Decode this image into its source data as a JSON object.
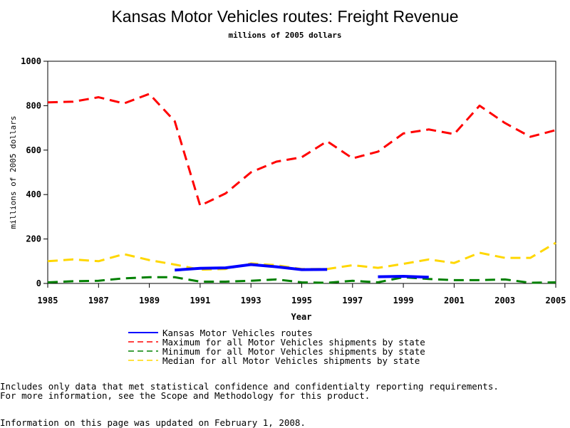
{
  "chart_data": {
    "type": "line",
    "title": "Kansas Motor Vehicles routes: Freight Revenue",
    "subtitle": "millions of 2005 dollars",
    "xlabel": "Year",
    "ylabel": "millions of 2005 dollars",
    "xlim": [
      1985,
      2005
    ],
    "ylim": [
      0,
      1000
    ],
    "x_ticks": [
      "1985",
      "1987",
      "1989",
      "1991",
      "1993",
      "1995",
      "1997",
      "1999",
      "2001",
      "2003",
      "2005"
    ],
    "y_ticks": [
      "0",
      "200",
      "400",
      "600",
      "800",
      "1000"
    ],
    "grid": false,
    "legend_position": "bottom",
    "series": [
      {
        "name": "Kansas Motor Vehicles routes",
        "color": "#0000ff",
        "style": "solid",
        "segments": [
          [
            [
              1990,
              60
            ],
            [
              1991,
              68
            ],
            [
              1992,
              70
            ],
            [
              1993,
              85
            ],
            [
              1994,
              75
            ],
            [
              1995,
              62
            ],
            [
              1996,
              63
            ]
          ],
          [
            [
              1998,
              30
            ],
            [
              1999,
              32
            ],
            [
              2000,
              28
            ]
          ]
        ]
      },
      {
        "name": "Maximum for all Motor Vehicles shipments by state",
        "color": "#ff0000",
        "style": "dashed",
        "segments": [
          [
            [
              1985,
              815
            ],
            [
              1986,
              818
            ],
            [
              1987,
              838
            ],
            [
              1988,
              810
            ],
            [
              1989,
              853
            ],
            [
              1990,
              730
            ],
            [
              1991,
              350
            ],
            [
              1992,
              405
            ],
            [
              1993,
              500
            ],
            [
              1994,
              548
            ],
            [
              1995,
              568
            ],
            [
              1996,
              640
            ],
            [
              1997,
              563
            ],
            [
              1998,
              593
            ],
            [
              1999,
              675
            ],
            [
              2000,
              693
            ],
            [
              2001,
              672
            ],
            [
              2002,
              800
            ],
            [
              2003,
              722
            ],
            [
              2004,
              660
            ],
            [
              2005,
              690
            ]
          ]
        ]
      },
      {
        "name": "Minimum for all Motor Vehicles shipments by state",
        "color": "#008000",
        "style": "dashed",
        "segments": [
          [
            [
              1985,
              5
            ],
            [
              1986,
              10
            ],
            [
              1987,
              12
            ],
            [
              1988,
              23
            ],
            [
              1989,
              28
            ],
            [
              1990,
              28
            ],
            [
              1991,
              8
            ],
            [
              1992,
              8
            ],
            [
              1993,
              12
            ],
            [
              1994,
              18
            ],
            [
              1995,
              5
            ],
            [
              1996,
              3
            ],
            [
              1997,
              12
            ],
            [
              1998,
              5
            ],
            [
              1999,
              28
            ],
            [
              2000,
              20
            ],
            [
              2001,
              15
            ],
            [
              2002,
              15
            ],
            [
              2003,
              18
            ],
            [
              2004,
              3
            ],
            [
              2005,
              5
            ]
          ]
        ]
      },
      {
        "name": "Median for all Motor Vehicles shipments by state",
        "color": "#ffd700",
        "style": "dashed",
        "segments": [
          [
            [
              1985,
              100
            ],
            [
              1986,
              108
            ],
            [
              1987,
              100
            ],
            [
              1988,
              132
            ],
            [
              1989,
              105
            ],
            [
              1990,
              85
            ],
            [
              1991,
              62
            ],
            [
              1992,
              65
            ],
            [
              1993,
              90
            ],
            [
              1994,
              82
            ],
            [
              1995,
              65
            ],
            [
              1996,
              65
            ],
            [
              1997,
              82
            ],
            [
              1998,
              70
            ],
            [
              1999,
              88
            ],
            [
              2000,
              108
            ],
            [
              2001,
              92
            ],
            [
              2002,
              138
            ],
            [
              2003,
              115
            ],
            [
              2004,
              115
            ],
            [
              2005,
              183
            ]
          ]
        ]
      }
    ]
  },
  "notes": {
    "line1": "Includes only data that met statistical confidence and confidentialty reporting requirements.",
    "line2": "For more information, see the Scope and Methodology for this product.",
    "updated": "Information on this page was updated on February 1, 2008."
  }
}
